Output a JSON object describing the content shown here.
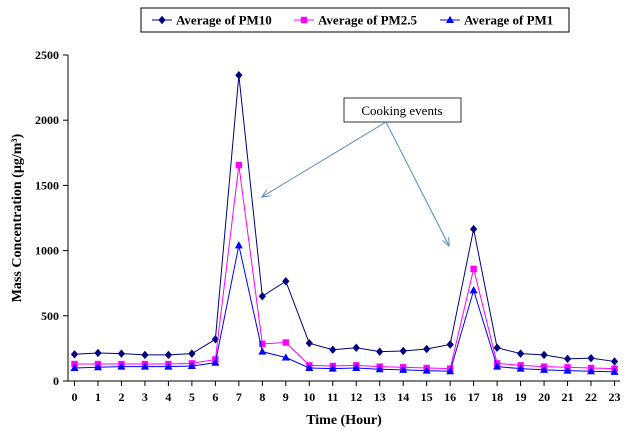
{
  "chart_data": {
    "type": "line",
    "xlabel": "Time (Hour)",
    "ylabel": "Mass Concentration (µg/m³)",
    "x": [
      0,
      1,
      2,
      3,
      4,
      5,
      6,
      7,
      8,
      9,
      10,
      11,
      12,
      13,
      14,
      15,
      16,
      17,
      18,
      19,
      20,
      21,
      22,
      23
    ],
    "ylim": [
      0,
      2500
    ],
    "yticks": [
      0,
      500,
      1000,
      1500,
      2000,
      2500
    ],
    "grid": false,
    "legend_position": "top",
    "series": [
      {
        "name": "Average of PM10",
        "color": "#000080",
        "marker": "diamond",
        "values": [
          205,
          215,
          210,
          200,
          200,
          210,
          320,
          2345,
          650,
          765,
          290,
          240,
          255,
          225,
          230,
          245,
          280,
          1165,
          255,
          210,
          200,
          170,
          175,
          150
        ]
      },
      {
        "name": "Average of PM2.5",
        "color": "#ff00ff",
        "marker": "square",
        "values": [
          130,
          130,
          130,
          130,
          130,
          135,
          165,
          1655,
          285,
          295,
          120,
          115,
          120,
          110,
          105,
          100,
          95,
          860,
          135,
          120,
          110,
          105,
          100,
          95
        ]
      },
      {
        "name": "Average of PM1",
        "color": "#0000ff",
        "marker": "triangle",
        "values": [
          100,
          105,
          110,
          110,
          110,
          115,
          140,
          1040,
          225,
          180,
          100,
          95,
          100,
          90,
          85,
          80,
          75,
          695,
          110,
          95,
          85,
          80,
          75,
          70
        ]
      }
    ],
    "annotations": [
      {
        "text": "Cooking events",
        "arrow_targets_x": [
          8,
          16
        ]
      }
    ]
  }
}
